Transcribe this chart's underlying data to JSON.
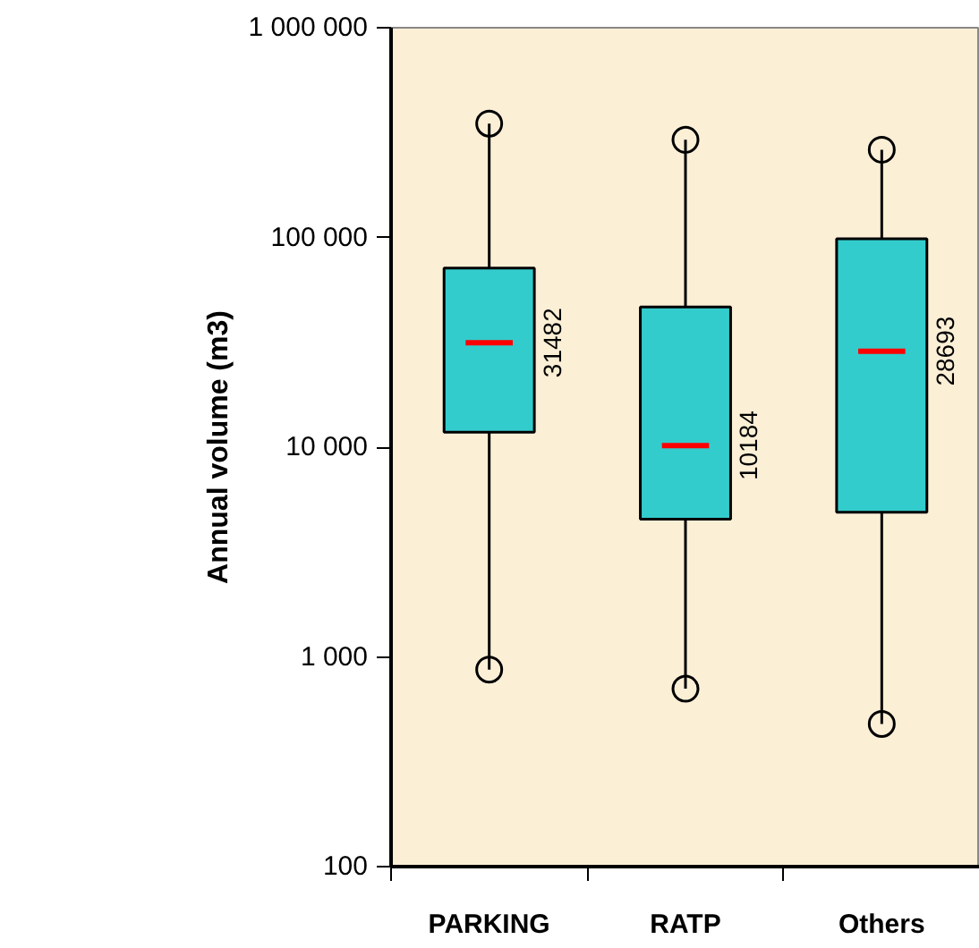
{
  "chart_data": {
    "type": "box",
    "ylabel": "Annual volume (m3)",
    "categories": [
      "PARKING",
      "RATP",
      "Others"
    ],
    "log": true,
    "grid": false,
    "ylim": [
      100,
      1000000
    ],
    "yticks": [
      {
        "value": 100,
        "label": "100"
      },
      {
        "value": 1000,
        "label": "1 000"
      },
      {
        "value": 10000,
        "label": "10 000"
      },
      {
        "value": 100000,
        "label": "100 000"
      },
      {
        "value": 1000000,
        "label": "1 000 000"
      }
    ],
    "series": [
      {
        "color": "#33cccc",
        "value_labels": [
          "31482",
          "10184",
          "28693"
        ],
        "boxes": [
          {
            "low": 870,
            "q1": 11800,
            "median": 31482,
            "q3": 71400,
            "high": 349000,
            "outliers": [
              870,
              349000
            ]
          },
          {
            "low": 705,
            "q1": 4540,
            "median": 10184,
            "q3": 46600,
            "high": 292000,
            "outliers": [
              705,
              292000
            ]
          },
          {
            "low": 479,
            "q1": 4900,
            "median": 28693,
            "q3": 98600,
            "high": 262000,
            "outliers": [
              479,
              262000
            ]
          }
        ]
      }
    ]
  }
}
